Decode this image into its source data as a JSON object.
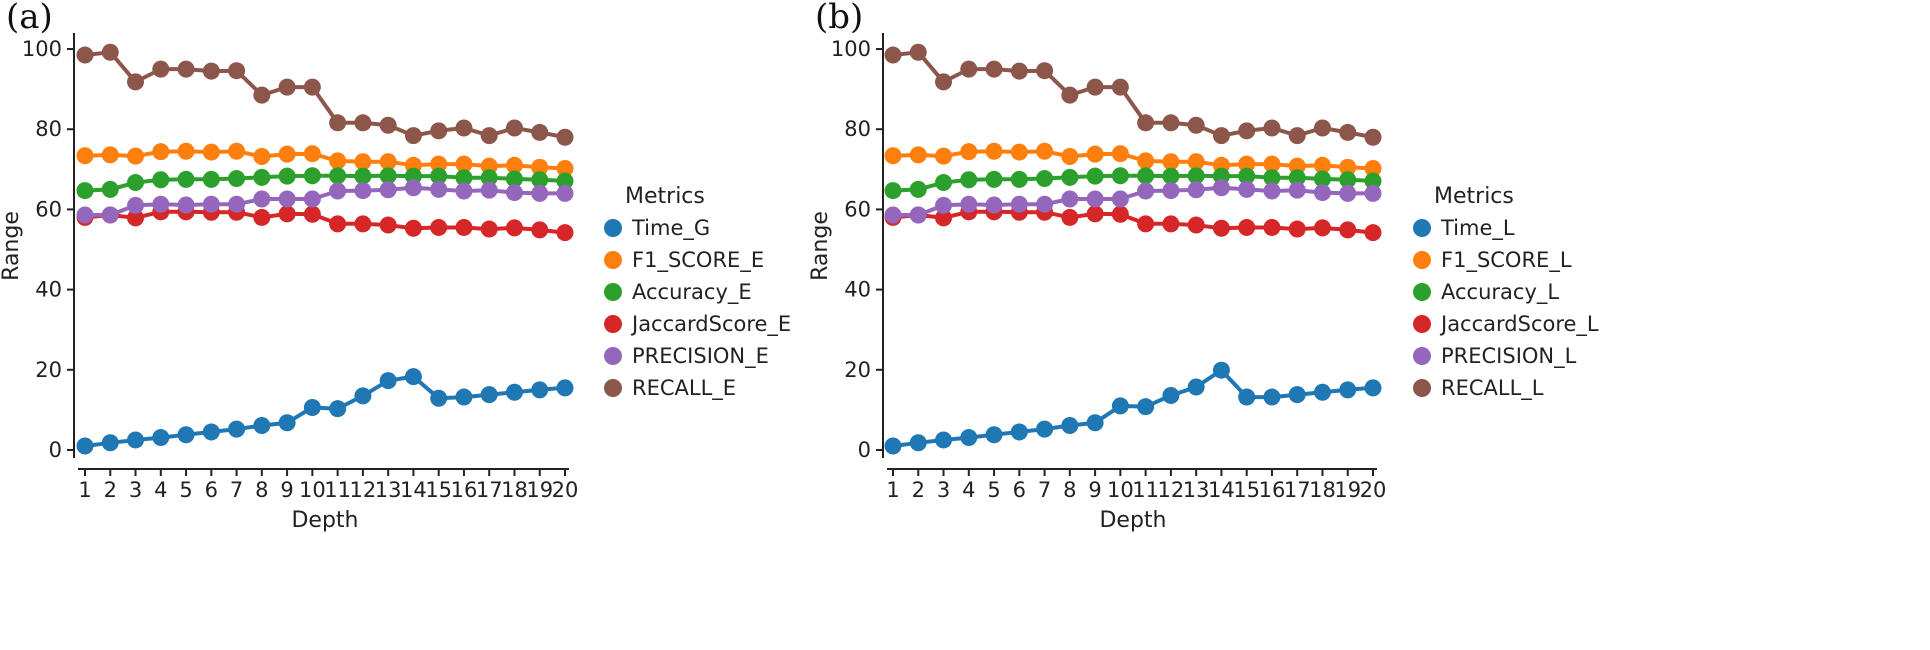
{
  "chart_data": [
    {
      "type": "line",
      "panel_label": "(a)",
      "xlabel": "Depth",
      "ylabel": "Range",
      "categories": [
        "1",
        "2",
        "3",
        "4",
        "5",
        "6",
        "7",
        "8",
        "9",
        "10",
        "11",
        "12",
        "13",
        "14",
        "15",
        "16",
        "17",
        "18",
        "19",
        "20"
      ],
      "yticks": [
        "0",
        "20",
        "40",
        "60",
        "80",
        "100"
      ],
      "ylim": [
        -2,
        104
      ],
      "grid": false,
      "legend": {
        "title": "Metrics",
        "placement": "right"
      },
      "series": [
        {
          "name": "Time_G",
          "color": "#1f77b4",
          "values": [
            1.0,
            1.8,
            2.5,
            3.1,
            3.8,
            4.5,
            5.2,
            6.1,
            6.8,
            10.6,
            10.3,
            13.5,
            17.3,
            18.3,
            12.9,
            13.2,
            13.8,
            14.4,
            15.0,
            15.5
          ]
        },
        {
          "name": "F1_SCORE_E",
          "color": "#ff7f0e",
          "values": [
            73.4,
            73.6,
            73.3,
            74.4,
            74.5,
            74.3,
            74.5,
            73.2,
            73.8,
            73.9,
            72.1,
            71.9,
            71.9,
            71.0,
            71.3,
            71.3,
            70.8,
            71.0,
            70.5,
            70.2
          ]
        },
        {
          "name": "Accuracy_E",
          "color": "#2ca02c",
          "values": [
            64.7,
            65.0,
            66.7,
            67.4,
            67.5,
            67.5,
            67.7,
            68.0,
            68.3,
            68.4,
            68.4,
            68.3,
            68.4,
            68.3,
            68.3,
            67.9,
            67.9,
            67.6,
            67.4,
            67.1
          ]
        },
        {
          "name": "JaccardScore_E",
          "color": "#d62728",
          "values": [
            58.0,
            58.6,
            57.9,
            59.4,
            59.4,
            59.3,
            59.3,
            58.0,
            58.9,
            58.8,
            56.4,
            56.4,
            56.1,
            55.3,
            55.5,
            55.5,
            55.1,
            55.4,
            54.9,
            54.2
          ]
        },
        {
          "name": "PRECISION_E",
          "color": "#9467bd",
          "values": [
            58.6,
            58.6,
            61.0,
            61.3,
            61.1,
            61.3,
            61.3,
            62.6,
            62.6,
            62.6,
            64.6,
            64.7,
            64.9,
            65.4,
            65.0,
            64.6,
            64.8,
            64.2,
            64.0,
            64.0
          ]
        },
        {
          "name": "RECALL_E",
          "color": "#8c564b",
          "values": [
            98.5,
            99.2,
            91.8,
            95.0,
            95.0,
            94.5,
            94.6,
            88.5,
            90.5,
            90.5,
            81.6,
            81.6,
            81.0,
            78.4,
            79.6,
            80.3,
            78.4,
            80.3,
            79.2,
            78.0
          ]
        }
      ]
    },
    {
      "type": "line",
      "panel_label": "(b)",
      "xlabel": "Depth",
      "ylabel": "Range",
      "categories": [
        "1",
        "2",
        "3",
        "4",
        "5",
        "6",
        "7",
        "8",
        "9",
        "10",
        "11",
        "12",
        "13",
        "14",
        "15",
        "16",
        "17",
        "18",
        "19",
        "20"
      ],
      "yticks": [
        "0",
        "20",
        "40",
        "60",
        "80",
        "100"
      ],
      "ylim": [
        -2,
        104
      ],
      "grid": false,
      "legend": {
        "title": "Metrics",
        "placement": "right"
      },
      "series": [
        {
          "name": "Time_L",
          "color": "#1f77b4",
          "values": [
            1.0,
            1.8,
            2.5,
            3.1,
            3.8,
            4.5,
            5.2,
            6.1,
            6.8,
            11.0,
            10.8,
            13.6,
            15.7,
            19.9,
            13.2,
            13.2,
            13.8,
            14.4,
            15.0,
            15.5
          ]
        },
        {
          "name": "F1_SCORE_L",
          "color": "#ff7f0e",
          "values": [
            73.4,
            73.6,
            73.3,
            74.4,
            74.5,
            74.3,
            74.5,
            73.2,
            73.8,
            73.9,
            72.1,
            71.9,
            71.9,
            71.0,
            71.3,
            71.3,
            70.8,
            71.0,
            70.5,
            70.2
          ]
        },
        {
          "name": "Accuracy_L",
          "color": "#2ca02c",
          "values": [
            64.7,
            65.0,
            66.7,
            67.4,
            67.5,
            67.5,
            67.7,
            68.0,
            68.3,
            68.4,
            68.4,
            68.3,
            68.4,
            68.3,
            68.3,
            67.9,
            67.9,
            67.6,
            67.4,
            67.1
          ]
        },
        {
          "name": "JaccardScore_L",
          "color": "#d62728",
          "values": [
            58.0,
            58.6,
            57.9,
            59.4,
            59.4,
            59.3,
            59.3,
            58.0,
            58.9,
            58.8,
            56.4,
            56.4,
            56.1,
            55.3,
            55.5,
            55.5,
            55.1,
            55.4,
            54.9,
            54.2
          ]
        },
        {
          "name": "PRECISION_L",
          "color": "#9467bd",
          "values": [
            58.6,
            58.6,
            61.0,
            61.3,
            61.1,
            61.3,
            61.3,
            62.6,
            62.6,
            62.6,
            64.6,
            64.7,
            64.9,
            65.4,
            65.0,
            64.6,
            64.8,
            64.2,
            64.0,
            64.0
          ]
        },
        {
          "name": "RECALL_L",
          "color": "#8c564b",
          "values": [
            98.5,
            99.2,
            91.8,
            95.0,
            95.0,
            94.5,
            94.6,
            88.5,
            90.5,
            90.5,
            81.6,
            81.6,
            81.0,
            78.4,
            79.6,
            80.3,
            78.4,
            80.3,
            79.2,
            78.0
          ]
        }
      ]
    }
  ]
}
